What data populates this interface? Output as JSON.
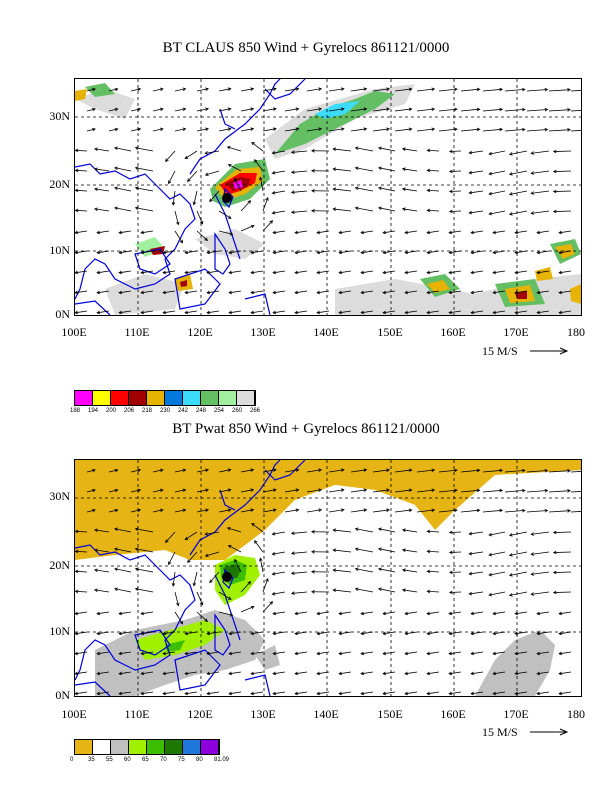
{
  "panel_top": {
    "title": "BT CLAUS 850 Wind + Gyrelocs 861121/0000",
    "colorbar": {
      "colors": [
        "#ff00ff",
        "#ffff00",
        "#ff0000",
        "#a00000",
        "#e6b400",
        "#0078dc",
        "#3cdcff",
        "#64be64",
        "#a0f0a0",
        "#dcdcdc"
      ],
      "labels": [
        "188",
        "194",
        "200",
        "206",
        "218",
        "230",
        "242",
        "248",
        "254",
        "260",
        "266"
      ]
    }
  },
  "panel_bottom": {
    "title": "BT Pwat 850 Wind + Gyrelocs 861121/0000",
    "colorbar": {
      "colors": [
        "#e6b414",
        "#ffffff",
        "#c0c0c0",
        "#a0f000",
        "#3cbe00",
        "#1e7800",
        "#1e78dc",
        "#8c00dc"
      ],
      "labels": [
        "0",
        "35",
        "55",
        "60",
        "65",
        "70",
        "75",
        "80",
        "81.09"
      ]
    }
  },
  "axes": {
    "lat_labels": [
      "30N",
      "20N",
      "10N",
      "0N"
    ],
    "lon_labels": [
      "100E",
      "110E",
      "120E",
      "130E",
      "140E",
      "150E",
      "160E",
      "170E",
      "180"
    ]
  },
  "scale": {
    "label": "15 M/S"
  },
  "colors": {
    "coast": "#0000dc",
    "grid": "#000000"
  }
}
